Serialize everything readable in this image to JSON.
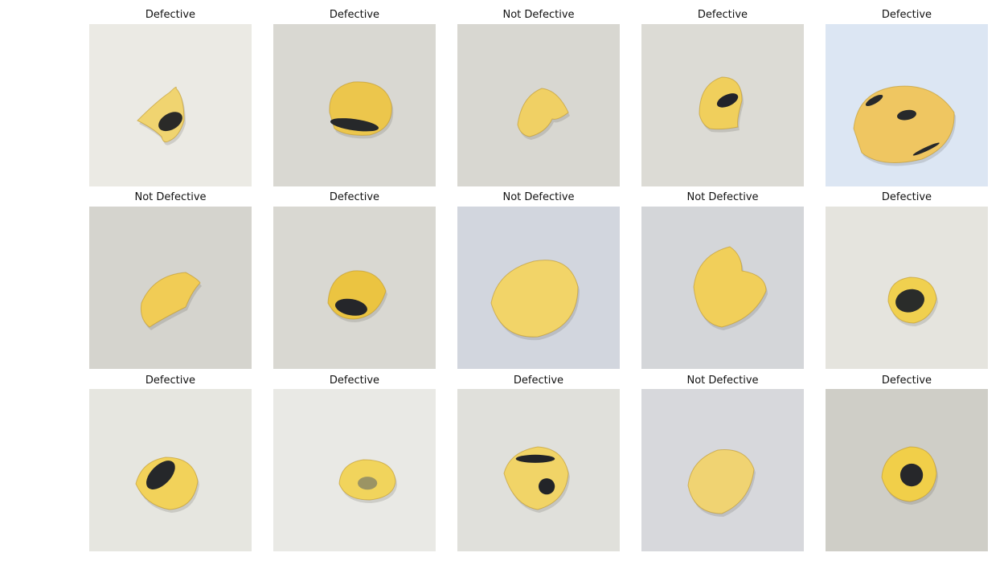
{
  "figure": {
    "panels": [
      {
        "label": "Defective",
        "bg": "#ebeae4",
        "chip": "#f0d470",
        "spot": "#2a2a28",
        "shape": 0,
        "spots": [
          [
            0.5,
            0.6,
            0.08,
            0.05,
            -30
          ]
        ]
      },
      {
        "label": "Defective",
        "bg": "#d9d8d2",
        "chip": "#ecc64c",
        "spot": "#26282a",
        "shape": 1,
        "spots": [
          [
            0.5,
            0.62,
            0.15,
            0.035,
            8
          ]
        ]
      },
      {
        "label": "Not Defective",
        "bg": "#d8d7d1",
        "chip": "#f0d064",
        "spot": "#2a2a28",
        "shape": 2,
        "spots": []
      },
      {
        "label": "Defective",
        "bg": "#dcdbd5",
        "chip": "#f0cf5c",
        "spot": "#22232a",
        "shape": 3,
        "spots": [
          [
            0.53,
            0.47,
            0.07,
            0.035,
            -25
          ]
        ]
      },
      {
        "label": "Defective",
        "bg": "#dce6f3",
        "chip": "#efc661",
        "spot": "#27292b",
        "shape": 4,
        "spots": [
          [
            0.5,
            0.56,
            0.06,
            0.03,
            -10
          ],
          [
            0.62,
            0.77,
            0.09,
            0.012,
            -25
          ],
          [
            0.3,
            0.47,
            0.06,
            0.02,
            -30
          ]
        ]
      },
      {
        "label": "Not Defective",
        "bg": "#d5d4ce",
        "chip": "#f1cc55",
        "spot": "#2a2a28",
        "shape": 5,
        "spots": []
      },
      {
        "label": "Defective",
        "bg": "#d9d8d2",
        "chip": "#ebc441",
        "spot": "#25262a",
        "shape": 6,
        "spots": [
          [
            0.48,
            0.62,
            0.1,
            0.05,
            10
          ]
        ]
      },
      {
        "label": "Not Defective",
        "bg": "#d2d6de",
        "chip": "#f2d468",
        "spot": "#2a2a28",
        "shape": 7,
        "spots": []
      },
      {
        "label": "Not Defective",
        "bg": "#d4d6d9",
        "chip": "#f1cf5a",
        "spot": "#2a2a28",
        "shape": 8,
        "spots": []
      },
      {
        "label": "Defective",
        "bg": "#e5e4de",
        "chip": "#f0d04f",
        "spot": "#2a2c2a",
        "shape": 9,
        "spots": [
          [
            0.52,
            0.58,
            0.09,
            0.07,
            -15
          ]
        ]
      },
      {
        "label": "Defective",
        "bg": "#e6e6e0",
        "chip": "#f2d25a",
        "spot": "#25272a",
        "shape": 10,
        "spots": [
          [
            0.44,
            0.53,
            0.11,
            0.06,
            -45
          ]
        ]
      },
      {
        "label": "Defective",
        "bg": "#e9e9e5",
        "chip": "#f1d45c",
        "spot": "#9b9464",
        "shape": 11,
        "spots": [
          [
            0.58,
            0.58,
            0.06,
            0.04,
            0
          ]
        ]
      },
      {
        "label": "Defective",
        "bg": "#e0e0db",
        "chip": "#f1d467",
        "spot": "#222428",
        "shape": 12,
        "spots": [
          [
            0.55,
            0.6,
            0.05,
            0.05,
            0
          ],
          [
            0.48,
            0.43,
            0.12,
            0.025,
            0
          ]
        ]
      },
      {
        "label": "Not Defective",
        "bg": "#d7d8dc",
        "chip": "#f0d372",
        "spot": "#2a2a28",
        "shape": 13,
        "spots": []
      },
      {
        "label": "Defective",
        "bg": "#cfcec7",
        "chip": "#f1cf49",
        "spot": "#26272a",
        "shape": 14,
        "spots": [
          [
            0.53,
            0.53,
            0.07,
            0.07,
            0
          ]
        ]
      }
    ]
  }
}
